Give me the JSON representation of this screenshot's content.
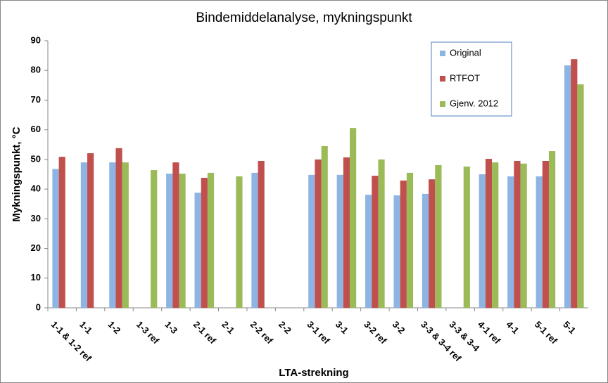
{
  "chart_data": {
    "type": "bar",
    "title": "Bindemiddelanalyse, mykningspunkt",
    "x_label": "LTA-strekning",
    "y_label": "Mykningspunkt, °C",
    "categories": [
      "1-1 & 1-2 ref",
      "1-1",
      "1-2",
      "1-3 ref",
      "1-3",
      "2-1 ref",
      "2-1",
      "2-2 ref",
      "2-2",
      "3-1 ref",
      "3-1",
      "3-2 ref",
      "3-2",
      "3-3 & 3-4 ref",
      "3-3 & 3-4",
      "4-1 ref",
      "4-1",
      "5-1 ref",
      "5-1"
    ],
    "series": [
      {
        "name": "Original",
        "color": "#8eb4e3",
        "values": [
          46.8,
          49.0,
          49.0,
          null,
          45.2,
          38.8,
          null,
          45.5,
          null,
          44.8,
          44.8,
          38.1,
          37.9,
          38.4,
          null,
          45.0,
          44.3,
          44.3,
          81.7
        ]
      },
      {
        "name": "RTFOT",
        "color": "#c0504d",
        "values": [
          50.9,
          52.1,
          53.8,
          null,
          49.0,
          43.8,
          null,
          49.5,
          null,
          50.0,
          50.7,
          44.5,
          42.9,
          43.3,
          null,
          50.2,
          49.5,
          49.5,
          83.8
        ]
      },
      {
        "name": "Gjenv. 2012",
        "color": "#9bbb59",
        "values": [
          null,
          null,
          49.0,
          46.4,
          45.2,
          45.5,
          44.3,
          null,
          null,
          54.5,
          60.6,
          50.0,
          45.5,
          48.1,
          47.6,
          49.0,
          48.6,
          52.8,
          75.3
        ]
      }
    ],
    "ylim": [
      0,
      90
    ],
    "yticks": [
      0,
      10,
      20,
      30,
      40,
      50,
      60,
      70,
      80,
      90
    ],
    "legend": "upper-right"
  }
}
